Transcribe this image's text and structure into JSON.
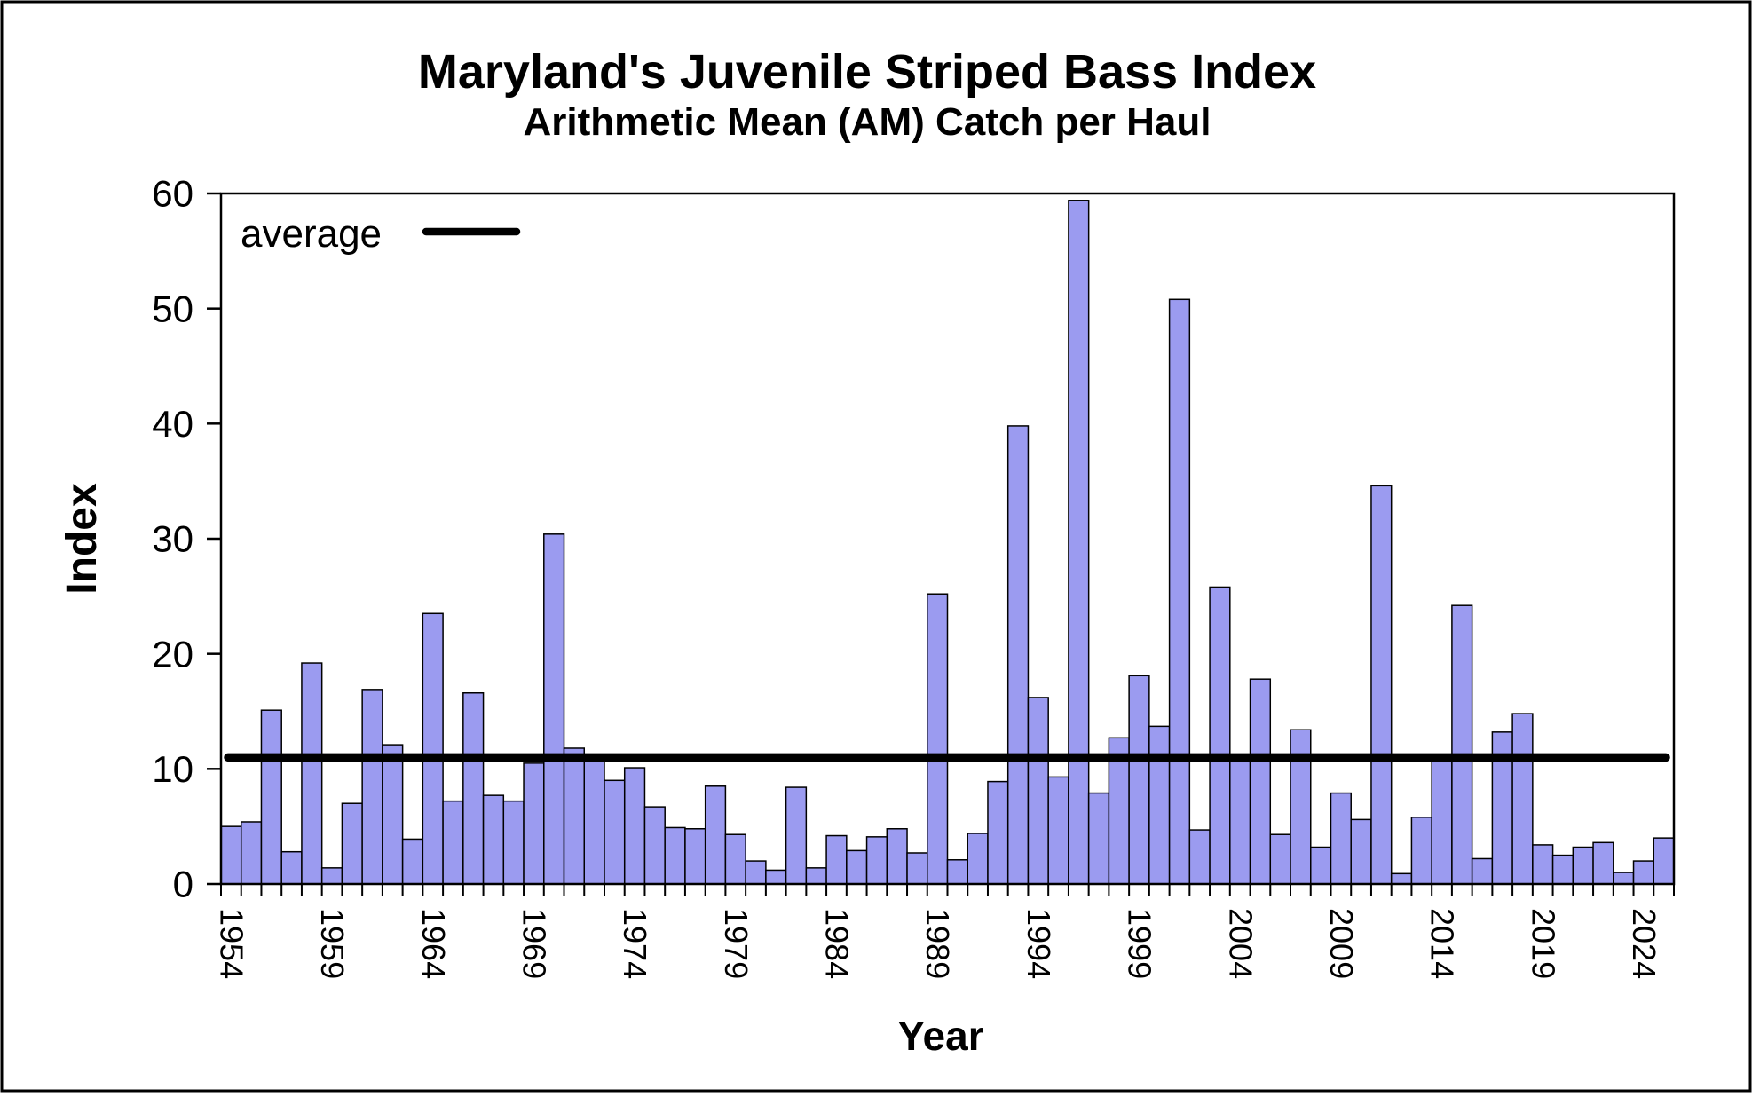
{
  "chart_data": {
    "type": "bar",
    "title": "Maryland's Juvenile Striped Bass Index",
    "subtitle": "Arithmetic Mean (AM) Catch per Haul",
    "xlabel": "Year",
    "ylabel": "Index",
    "legend_label": "average",
    "legend_position": "top-left-inside",
    "grid": false,
    "ylim": [
      0,
      60
    ],
    "yticks": [
      0,
      10,
      20,
      30,
      40,
      50,
      60
    ],
    "xtick_label_years": [
      1954,
      1959,
      1964,
      1969,
      1974,
      1979,
      1984,
      1989,
      1994,
      1999,
      2004,
      2009,
      2014,
      2019,
      2024
    ],
    "average_line_value": 11.0,
    "bar_fill_color": "#9B9BF0",
    "bar_edge_color": "#000000",
    "average_line_color": "#000000",
    "frame_color": "#000000",
    "categories": [
      1954,
      1955,
      1956,
      1957,
      1958,
      1959,
      1960,
      1961,
      1962,
      1963,
      1964,
      1965,
      1966,
      1967,
      1968,
      1969,
      1970,
      1971,
      1972,
      1973,
      1974,
      1975,
      1976,
      1977,
      1978,
      1979,
      1980,
      1981,
      1982,
      1983,
      1984,
      1985,
      1986,
      1987,
      1988,
      1989,
      1990,
      1991,
      1992,
      1993,
      1994,
      1995,
      1996,
      1997,
      1998,
      1999,
      2000,
      2001,
      2002,
      2003,
      2004,
      2005,
      2006,
      2007,
      2008,
      2009,
      2010,
      2011,
      2012,
      2013,
      2014,
      2015,
      2016,
      2017,
      2018,
      2019,
      2020,
      2021,
      2022,
      2023,
      2024,
      2025
    ],
    "values": [
      5.0,
      5.4,
      15.1,
      2.8,
      19.2,
      1.4,
      7.0,
      16.9,
      12.1,
      3.9,
      23.5,
      7.2,
      16.6,
      7.7,
      7.2,
      10.5,
      30.4,
      11.8,
      10.7,
      9.0,
      10.1,
      6.7,
      4.9,
      4.8,
      8.5,
      4.3,
      2.0,
      1.2,
      8.4,
      1.4,
      4.2,
      2.9,
      4.1,
      4.8,
      2.7,
      25.2,
      2.1,
      4.4,
      8.9,
      39.8,
      16.2,
      9.3,
      59.4,
      7.9,
      12.7,
      18.1,
      13.7,
      50.8,
      4.7,
      25.8,
      11.2,
      17.8,
      4.3,
      13.4,
      3.2,
      7.9,
      5.6,
      34.6,
      0.9,
      5.8,
      11.0,
      24.2,
      2.2,
      13.2,
      14.8,
      3.4,
      2.5,
      3.2,
      3.6,
      1.0,
      2.0,
      4.0
    ]
  }
}
